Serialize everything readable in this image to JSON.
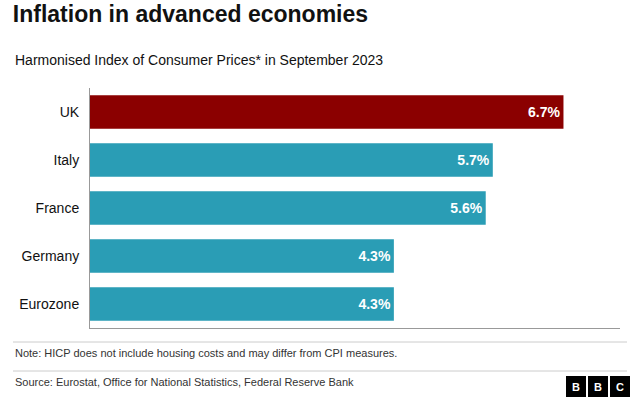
{
  "chart_data": {
    "type": "bar",
    "orientation": "horizontal",
    "title": "Inflation in advanced economies",
    "subtitle": "Harmonised Index of Consumer Prices* in September 2023",
    "categories": [
      "Eurozone",
      "Germany",
      "France",
      "Italy",
      "UK"
    ],
    "values": [
      4.3,
      4.3,
      5.6,
      5.7,
      6.7
    ],
    "value_labels": [
      "4.3%",
      "4.3%",
      "5.6%",
      "5.7%",
      "6.7%"
    ],
    "data_labels": true,
    "colors": [
      "#2a9db5",
      "#2a9db5",
      "#2a9db5",
      "#2a9db5",
      "#8b0000"
    ],
    "xlim": [
      0,
      7.5
    ],
    "tick_labels": "y",
    "grid": false,
    "note": "Note: HICP does not include housing costs and may differ from CPI measures.",
    "source": "Source: Eurostat, Office for National Statistics, Federal Reserve Bank",
    "logo": "BBC"
  }
}
